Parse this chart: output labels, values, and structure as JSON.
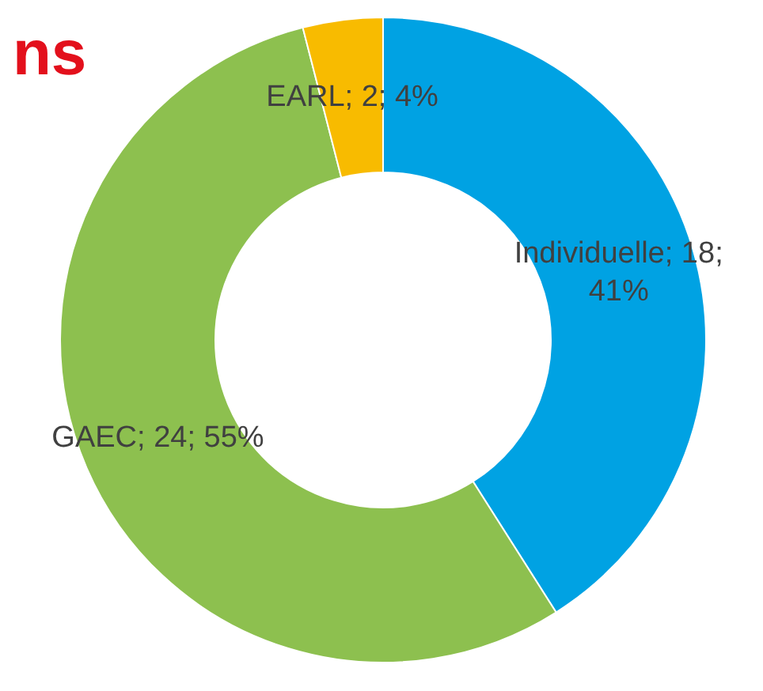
{
  "chart_data": {
    "type": "donut",
    "title": "ns",
    "categories": [
      "Individuelle",
      "GAEC",
      "EARL"
    ],
    "values": [
      41,
      55,
      4
    ],
    "colors": [
      "#00a2e3",
      "#8dc04f",
      "#f8bb00"
    ],
    "value_labels": [
      "18; 41%",
      "24; 55%",
      "2; 4%"
    ]
  }
}
